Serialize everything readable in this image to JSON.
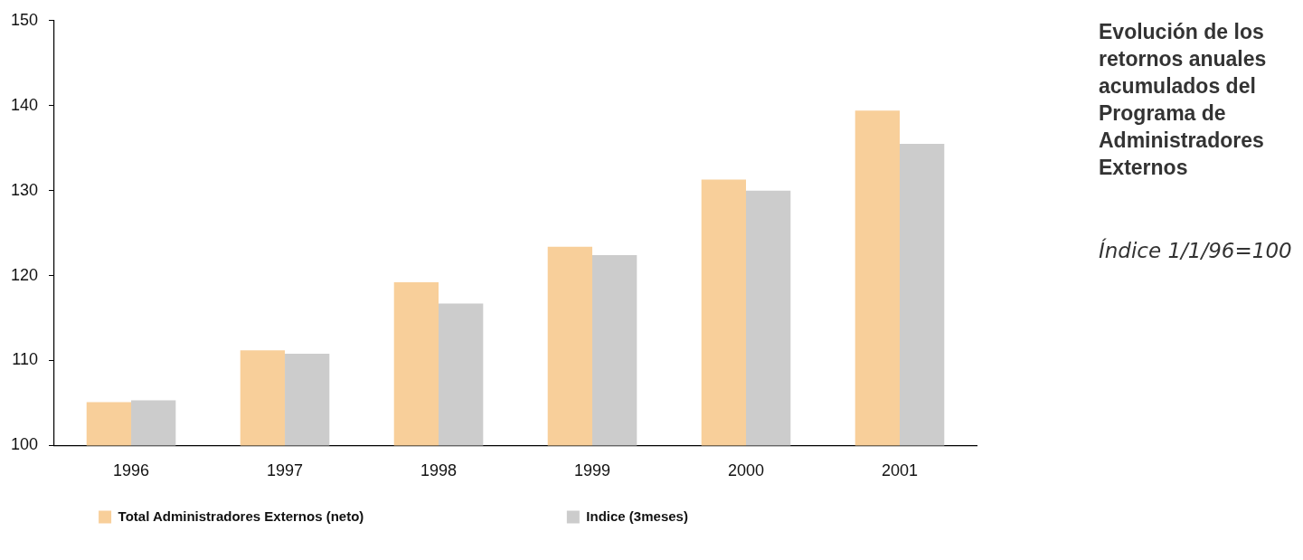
{
  "chart_data": {
    "type": "bar",
    "title": "Evolución de los retornos anuales acumulados del Programa de Administradores Externos",
    "subtitle": "Índice 1/1/96=100",
    "categories": [
      "1996",
      "1997",
      "1998",
      "1999",
      "2000",
      "2001"
    ],
    "series": [
      {
        "name": "Total Administradores Externos (neto)",
        "color": "#f8cf9a",
        "values": [
          105.1,
          111.2,
          119.2,
          123.4,
          131.3,
          139.4
        ]
      },
      {
        "name": "Indice (3meses)",
        "color": "#cccccc",
        "values": [
          105.3,
          110.8,
          116.7,
          122.4,
          130.0,
          135.5
        ]
      }
    ],
    "ylim": [
      100,
      150
    ],
    "yticks": [
      100,
      110,
      120,
      130,
      140,
      150
    ],
    "grid": false,
    "legend": "bottom"
  }
}
